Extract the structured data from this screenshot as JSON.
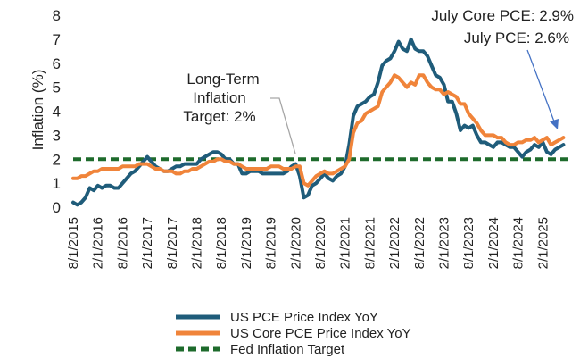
{
  "chart_data": {
    "type": "line",
    "ylabel": "Inflation (%)",
    "ylim": [
      0,
      8
    ],
    "yticks": [
      0,
      1,
      2,
      3,
      4,
      5,
      6,
      7,
      8
    ],
    "x_start": "2015-08",
    "x_end": "2025-08",
    "x_tick_labels": [
      "8/1/2015",
      "2/1/2016",
      "8/1/2016",
      "2/1/2017",
      "8/1/2017",
      "2/1/2018",
      "8/1/2018",
      "2/1/2019",
      "8/1/2019",
      "2/1/2020",
      "8/1/2020",
      "2/1/2021",
      "8/1/2021",
      "2/1/2022",
      "8/1/2022",
      "2/1/2023",
      "8/1/2023",
      "2/1/2024",
      "8/1/2024",
      "2/1/2025"
    ],
    "grid": false,
    "legend_position": "bottom",
    "annotations": {
      "long_term": [
        "Long-Term",
        "Inflation",
        "Target: 2%"
      ],
      "core_label": "July Core PCE: 2.9%",
      "pce_label": "July PCE: 2.6%"
    },
    "series": [
      {
        "name": "US PCE Price Index YoY",
        "color": "#1f5c7a",
        "x": [
          "2015-08",
          "2015-09",
          "2015-10",
          "2015-11",
          "2015-12",
          "2016-01",
          "2016-02",
          "2016-03",
          "2016-04",
          "2016-05",
          "2016-06",
          "2016-07",
          "2016-08",
          "2016-09",
          "2016-10",
          "2016-11",
          "2016-12",
          "2017-01",
          "2017-02",
          "2017-03",
          "2017-04",
          "2017-05",
          "2017-06",
          "2017-07",
          "2017-08",
          "2017-09",
          "2017-10",
          "2017-11",
          "2017-12",
          "2018-01",
          "2018-02",
          "2018-03",
          "2018-04",
          "2018-05",
          "2018-06",
          "2018-07",
          "2018-08",
          "2018-09",
          "2018-10",
          "2018-11",
          "2018-12",
          "2019-01",
          "2019-02",
          "2019-03",
          "2019-04",
          "2019-05",
          "2019-06",
          "2019-07",
          "2019-08",
          "2019-09",
          "2019-10",
          "2019-11",
          "2019-12",
          "2020-01",
          "2020-02",
          "2020-03",
          "2020-04",
          "2020-05",
          "2020-06",
          "2020-07",
          "2020-08",
          "2020-09",
          "2020-10",
          "2020-11",
          "2020-12",
          "2021-01",
          "2021-02",
          "2021-03",
          "2021-04",
          "2021-05",
          "2021-06",
          "2021-07",
          "2021-08",
          "2021-09",
          "2021-10",
          "2021-11",
          "2021-12",
          "2022-01",
          "2022-02",
          "2022-03",
          "2022-04",
          "2022-05",
          "2022-06",
          "2022-07",
          "2022-08",
          "2022-09",
          "2022-10",
          "2022-11",
          "2022-12",
          "2023-01",
          "2023-02",
          "2023-03",
          "2023-04",
          "2023-05",
          "2023-06",
          "2023-07",
          "2023-08",
          "2023-09",
          "2023-10",
          "2023-11",
          "2023-12",
          "2024-01",
          "2024-02",
          "2024-03",
          "2024-04",
          "2024-05",
          "2024-06",
          "2024-07",
          "2024-08",
          "2024-09",
          "2024-10",
          "2024-11",
          "2024-12",
          "2025-01",
          "2025-02",
          "2025-03",
          "2025-04",
          "2025-05",
          "2025-06",
          "2025-07"
        ],
        "values": [
          0.2,
          0.1,
          0.2,
          0.4,
          0.8,
          0.7,
          0.9,
          0.8,
          0.9,
          0.9,
          0.8,
          0.8,
          1.0,
          1.2,
          1.4,
          1.5,
          1.7,
          1.9,
          2.1,
          1.9,
          1.7,
          1.6,
          1.5,
          1.5,
          1.6,
          1.7,
          1.7,
          1.8,
          1.8,
          1.8,
          1.8,
          2.0,
          2.1,
          2.2,
          2.3,
          2.3,
          2.2,
          2.0,
          2.0,
          1.8,
          1.8,
          1.4,
          1.4,
          1.5,
          1.5,
          1.5,
          1.4,
          1.4,
          1.4,
          1.4,
          1.4,
          1.4,
          1.5,
          1.7,
          1.8,
          1.3,
          0.4,
          0.5,
          0.9,
          1.0,
          1.2,
          1.4,
          1.2,
          1.1,
          1.3,
          1.4,
          1.7,
          2.6,
          3.8,
          4.2,
          4.3,
          4.4,
          4.6,
          4.7,
          5.2,
          5.9,
          6.1,
          6.2,
          6.5,
          6.9,
          6.6,
          6.5,
          7.0,
          6.6,
          6.5,
          6.5,
          6.3,
          5.9,
          5.5,
          5.4,
          5.1,
          4.4,
          4.4,
          3.9,
          3.2,
          3.4,
          3.3,
          3.4,
          3.0,
          2.7,
          2.7,
          2.6,
          2.5,
          2.7,
          2.7,
          2.6,
          2.5,
          2.5,
          2.3,
          2.1,
          2.3,
          2.4,
          2.6,
          2.5,
          2.7,
          2.3,
          2.2,
          2.4,
          2.5,
          2.6
        ]
      },
      {
        "name": "US Core PCE Price Index YoY",
        "color": "#f0843a",
        "x": [
          "2015-08",
          "2015-09",
          "2015-10",
          "2015-11",
          "2015-12",
          "2016-01",
          "2016-02",
          "2016-03",
          "2016-04",
          "2016-05",
          "2016-06",
          "2016-07",
          "2016-08",
          "2016-09",
          "2016-10",
          "2016-11",
          "2016-12",
          "2017-01",
          "2017-02",
          "2017-03",
          "2017-04",
          "2017-05",
          "2017-06",
          "2017-07",
          "2017-08",
          "2017-09",
          "2017-10",
          "2017-11",
          "2017-12",
          "2018-01",
          "2018-02",
          "2018-03",
          "2018-04",
          "2018-05",
          "2018-06",
          "2018-07",
          "2018-08",
          "2018-09",
          "2018-10",
          "2018-11",
          "2018-12",
          "2019-01",
          "2019-02",
          "2019-03",
          "2019-04",
          "2019-05",
          "2019-06",
          "2019-07",
          "2019-08",
          "2019-09",
          "2019-10",
          "2019-11",
          "2019-12",
          "2020-01",
          "2020-02",
          "2020-03",
          "2020-04",
          "2020-05",
          "2020-06",
          "2020-07",
          "2020-08",
          "2020-09",
          "2020-10",
          "2020-11",
          "2020-12",
          "2021-01",
          "2021-02",
          "2021-03",
          "2021-04",
          "2021-05",
          "2021-06",
          "2021-07",
          "2021-08",
          "2021-09",
          "2021-10",
          "2021-11",
          "2021-12",
          "2022-01",
          "2022-02",
          "2022-03",
          "2022-04",
          "2022-05",
          "2022-06",
          "2022-07",
          "2022-08",
          "2022-09",
          "2022-10",
          "2022-11",
          "2022-12",
          "2023-01",
          "2023-02",
          "2023-03",
          "2023-04",
          "2023-05",
          "2023-06",
          "2023-07",
          "2023-08",
          "2023-09",
          "2023-10",
          "2023-11",
          "2023-12",
          "2024-01",
          "2024-02",
          "2024-03",
          "2024-04",
          "2024-05",
          "2024-06",
          "2024-07",
          "2024-08",
          "2024-09",
          "2024-10",
          "2024-11",
          "2024-12",
          "2025-01",
          "2025-02",
          "2025-03",
          "2025-04",
          "2025-05",
          "2025-06",
          "2025-07"
        ],
        "values": [
          1.2,
          1.2,
          1.3,
          1.3,
          1.4,
          1.5,
          1.5,
          1.6,
          1.6,
          1.6,
          1.6,
          1.6,
          1.7,
          1.7,
          1.7,
          1.7,
          1.8,
          1.8,
          1.8,
          1.7,
          1.6,
          1.6,
          1.5,
          1.5,
          1.5,
          1.4,
          1.4,
          1.5,
          1.5,
          1.6,
          1.6,
          1.7,
          1.8,
          1.9,
          1.9,
          2.0,
          2.0,
          1.9,
          1.9,
          1.8,
          1.8,
          1.7,
          1.6,
          1.6,
          1.6,
          1.6,
          1.6,
          1.6,
          1.7,
          1.7,
          1.7,
          1.6,
          1.6,
          1.6,
          1.7,
          1.7,
          1.0,
          0.9,
          1.1,
          1.3,
          1.4,
          1.5,
          1.4,
          1.4,
          1.5,
          1.6,
          1.7,
          2.0,
          3.1,
          3.5,
          3.6,
          3.9,
          4.0,
          4.1,
          4.2,
          4.8,
          5.0,
          5.2,
          5.5,
          5.4,
          5.2,
          5.0,
          5.2,
          5.1,
          5.5,
          5.5,
          5.2,
          5.0,
          4.9,
          4.9,
          4.7,
          4.8,
          4.7,
          4.6,
          4.3,
          4.3,
          3.9,
          3.7,
          3.5,
          3.2,
          3.0,
          3.0,
          3.0,
          2.9,
          2.9,
          2.7,
          2.6,
          2.6,
          2.7,
          2.7,
          2.8,
          2.8,
          2.9,
          2.7,
          2.8,
          2.9,
          2.6,
          2.7,
          2.8,
          2.9
        ]
      },
      {
        "name": "Fed Inflation Target",
        "color": "#1e6b2c",
        "style": "dashed",
        "values": [
          2.0
        ]
      }
    ]
  }
}
